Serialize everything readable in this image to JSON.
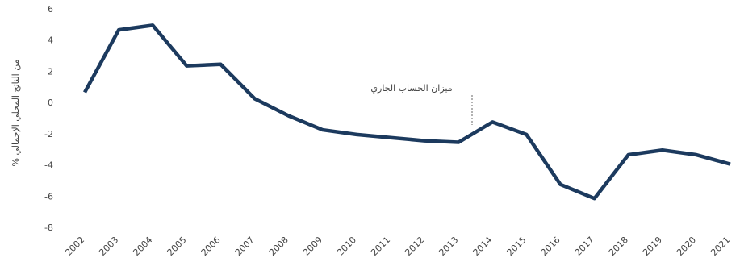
{
  "chart_data": {
    "type": "line",
    "y_label": "% من الناتج المحلي الإجمالي",
    "annotation": "ميزان الحساب الجاري",
    "categories": [
      "2002",
      "2003",
      "2004",
      "2005",
      "2006",
      "2007",
      "2008",
      "2009",
      "2010",
      "2011",
      "2012",
      "2013",
      "2014",
      "2015",
      "2016",
      "2017",
      "2018",
      "2019",
      "2020",
      "2021"
    ],
    "series": [
      {
        "name": "ميزان الحساب الجاري",
        "color": "#1c3a5e",
        "values": [
          0.7,
          4.7,
          5.0,
          2.4,
          2.5,
          0.3,
          -0.8,
          -1.7,
          -2.0,
          -2.2,
          -2.4,
          -2.5,
          -1.2,
          -2.0,
          -5.2,
          -6.1,
          -3.3,
          -3.0,
          -3.3,
          -3.9
        ]
      }
    ],
    "ylim": [
      -8,
      6
    ],
    "yticks": [
      -8,
      -6,
      -4,
      -2,
      0,
      2,
      4,
      6
    ],
    "grid": false
  }
}
